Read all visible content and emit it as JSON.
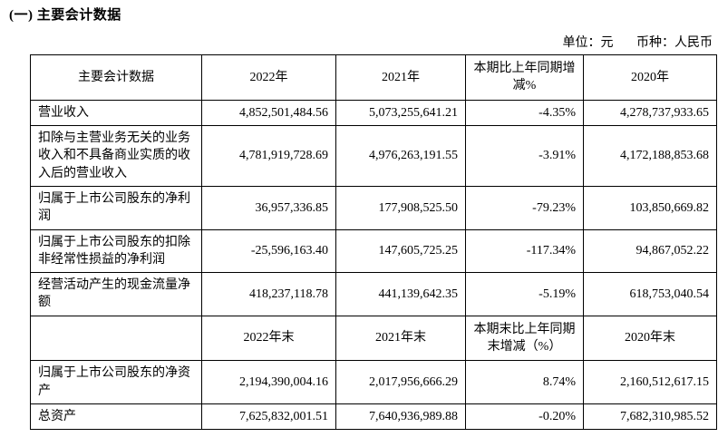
{
  "page": {
    "title": "(一) 主要会计数据",
    "unit_label": "单位：元",
    "currency_label": "币种：人民币"
  },
  "table": {
    "header": {
      "metric": "主要会计数据",
      "y2022": "2022年",
      "y2021": "2021年",
      "change": "本期比上年同期增减%",
      "y2020": "2020年"
    },
    "rows": [
      {
        "cells": [
          "营业收入",
          "4,852,501,484.56",
          "5,073,255,641.21",
          "-4.35%",
          "4,278,737,933.65"
        ]
      },
      {
        "cells": [
          "扣除与主营业务无关的业务收入和不具备商业实质的收入后的营业收入",
          "4,781,919,728.69",
          "4,976,263,191.55",
          "-3.91%",
          "4,172,188,853.68"
        ]
      },
      {
        "cells": [
          "归属于上市公司股东的净利润",
          "36,957,336.85",
          "177,908,525.50",
          "-79.23%",
          "103,850,669.82"
        ]
      },
      {
        "cells": [
          "归属于上市公司股东的扣除非经常性损益的净利润",
          "-25,596,163.40",
          "147,605,725.25",
          "-117.34%",
          "94,867,052.22"
        ]
      },
      {
        "cells": [
          "经营活动产生的现金流量净额",
          "418,237,118.78",
          "441,139,642.35",
          "-5.19%",
          "618,753,040.54"
        ]
      }
    ],
    "subheader": {
      "metric": "",
      "y2022end": "2022年末",
      "y2021end": "2021年末",
      "change_end": "本期末比上年同期末增减（%）",
      "y2020end": "2020年末"
    },
    "rows2": [
      {
        "cells": [
          "归属于上市公司股东的净资产",
          "2,194,390,004.16",
          "2,017,956,666.29",
          "8.74%",
          "2,160,512,617.15"
        ]
      },
      {
        "cells": [
          "总资产",
          "7,625,832,001.51",
          "7,640,936,989.88",
          "-0.20%",
          "7,682,310,985.52"
        ]
      }
    ]
  }
}
